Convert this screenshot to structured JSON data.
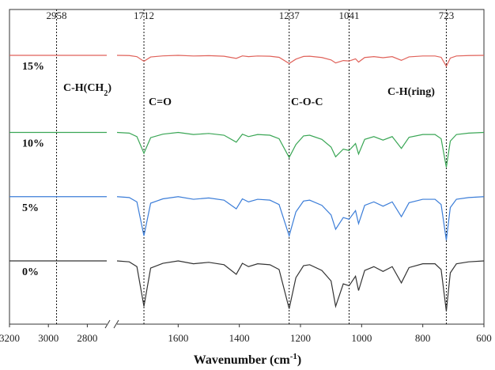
{
  "chart_data": {
    "type": "line",
    "title": "",
    "xlabel": "Wavenumber (cm",
    "xlabel_sup": "-1",
    "xlabel_end": ")",
    "ylabel": "",
    "x_reversed": true,
    "x_break": {
      "from": 2700,
      "to": 1800
    },
    "x_ticks": [
      {
        "value": 3200,
        "label": "3200"
      },
      {
        "value": 3000,
        "label": "3000"
      },
      {
        "value": 2800,
        "label": "2800"
      },
      {
        "value": 1600,
        "label": "1600"
      },
      {
        "value": 1400,
        "label": "1400"
      },
      {
        "value": 1200,
        "label": "1200"
      },
      {
        "value": 1000,
        "label": "1000"
      },
      {
        "value": 800,
        "label": "800"
      },
      {
        "value": 600,
        "label": "600"
      }
    ],
    "peaks": [
      {
        "value": 2958,
        "label": "2958"
      },
      {
        "value": 1712,
        "label": "1712"
      },
      {
        "value": 1237,
        "label": "1237"
      },
      {
        "value": 1041,
        "label": "1041"
      },
      {
        "value": 723,
        "label": "723"
      }
    ],
    "annotations": [
      {
        "label": "C-H(CH",
        "sub": "2",
        "end": ")",
        "x": 2958
      },
      {
        "label": "C=O",
        "x": 1712
      },
      {
        "label": "C-O-C",
        "x": 1237
      },
      {
        "label": "C-H(ring)",
        "x": 1041
      }
    ],
    "series": [
      {
        "name": "15%",
        "color": "#e0625a",
        "baseline": 1.0,
        "scale": 0.25,
        "high_region": [
          [
            3200,
            0.0
          ],
          [
            2700,
            0.0
          ]
        ],
        "points": [
          [
            1800,
            0.0
          ],
          [
            1760,
            0.02
          ],
          [
            1735,
            0.12
          ],
          [
            1712,
            0.55
          ],
          [
            1690,
            0.15
          ],
          [
            1650,
            0.05
          ],
          [
            1600,
            0.0
          ],
          [
            1550,
            0.06
          ],
          [
            1500,
            0.03
          ],
          [
            1450,
            0.08
          ],
          [
            1410,
            0.28
          ],
          [
            1390,
            0.05
          ],
          [
            1370,
            0.12
          ],
          [
            1340,
            0.06
          ],
          [
            1300,
            0.08
          ],
          [
            1270,
            0.18
          ],
          [
            1237,
            0.75
          ],
          [
            1215,
            0.35
          ],
          [
            1190,
            0.1
          ],
          [
            1170,
            0.08
          ],
          [
            1130,
            0.2
          ],
          [
            1100,
            0.42
          ],
          [
            1085,
            0.7
          ],
          [
            1060,
            0.48
          ],
          [
            1041,
            0.52
          ],
          [
            1020,
            0.32
          ],
          [
            1010,
            0.62
          ],
          [
            990,
            0.2
          ],
          [
            960,
            0.12
          ],
          [
            930,
            0.22
          ],
          [
            900,
            0.12
          ],
          [
            870,
            0.46
          ],
          [
            845,
            0.14
          ],
          [
            800,
            0.06
          ],
          [
            760,
            0.06
          ],
          [
            740,
            0.18
          ],
          [
            723,
            1.0
          ],
          [
            710,
            0.25
          ],
          [
            690,
            0.06
          ],
          [
            650,
            0.02
          ],
          [
            600,
            0.0
          ]
        ]
      },
      {
        "name": "10%",
        "color": "#3aa655",
        "baseline": 0.7,
        "scale": 0.8,
        "high_region": [
          [
            3200,
            0.0
          ],
          [
            2700,
            0.0
          ]
        ],
        "points": [
          [
            1800,
            0.0
          ],
          [
            1760,
            0.02
          ],
          [
            1735,
            0.12
          ],
          [
            1712,
            0.6
          ],
          [
            1690,
            0.15
          ],
          [
            1650,
            0.05
          ],
          [
            1600,
            0.0
          ],
          [
            1550,
            0.06
          ],
          [
            1500,
            0.03
          ],
          [
            1450,
            0.08
          ],
          [
            1410,
            0.28
          ],
          [
            1390,
            0.05
          ],
          [
            1370,
            0.12
          ],
          [
            1340,
            0.06
          ],
          [
            1300,
            0.08
          ],
          [
            1270,
            0.18
          ],
          [
            1237,
            0.72
          ],
          [
            1215,
            0.35
          ],
          [
            1190,
            0.1
          ],
          [
            1170,
            0.08
          ],
          [
            1130,
            0.2
          ],
          [
            1100,
            0.42
          ],
          [
            1085,
            0.7
          ],
          [
            1060,
            0.48
          ],
          [
            1041,
            0.52
          ],
          [
            1020,
            0.32
          ],
          [
            1010,
            0.62
          ],
          [
            990,
            0.2
          ],
          [
            960,
            0.12
          ],
          [
            930,
            0.22
          ],
          [
            900,
            0.12
          ],
          [
            870,
            0.46
          ],
          [
            845,
            0.14
          ],
          [
            800,
            0.06
          ],
          [
            760,
            0.06
          ],
          [
            740,
            0.18
          ],
          [
            723,
            1.0
          ],
          [
            710,
            0.25
          ],
          [
            690,
            0.06
          ],
          [
            650,
            0.02
          ],
          [
            600,
            0.0
          ]
        ]
      },
      {
        "name": "5%",
        "color": "#3b7dd8",
        "baseline": 0.45,
        "scale": 1.0,
        "high_region": [
          [
            3200,
            0.0
          ],
          [
            2700,
            0.0
          ]
        ],
        "points": [
          [
            1800,
            0.0
          ],
          [
            1760,
            0.02
          ],
          [
            1735,
            0.12
          ],
          [
            1712,
            0.9
          ],
          [
            1690,
            0.15
          ],
          [
            1650,
            0.05
          ],
          [
            1600,
            0.0
          ],
          [
            1550,
            0.06
          ],
          [
            1500,
            0.03
          ],
          [
            1450,
            0.08
          ],
          [
            1410,
            0.28
          ],
          [
            1390,
            0.05
          ],
          [
            1370,
            0.12
          ],
          [
            1340,
            0.06
          ],
          [
            1300,
            0.08
          ],
          [
            1270,
            0.18
          ],
          [
            1237,
            0.9
          ],
          [
            1215,
            0.35
          ],
          [
            1190,
            0.1
          ],
          [
            1170,
            0.08
          ],
          [
            1130,
            0.2
          ],
          [
            1100,
            0.42
          ],
          [
            1085,
            0.75
          ],
          [
            1060,
            0.48
          ],
          [
            1041,
            0.52
          ],
          [
            1020,
            0.32
          ],
          [
            1010,
            0.62
          ],
          [
            990,
            0.2
          ],
          [
            960,
            0.12
          ],
          [
            930,
            0.22
          ],
          [
            900,
            0.12
          ],
          [
            870,
            0.46
          ],
          [
            845,
            0.14
          ],
          [
            800,
            0.06
          ],
          [
            760,
            0.06
          ],
          [
            740,
            0.18
          ],
          [
            723,
            1.0
          ],
          [
            710,
            0.25
          ],
          [
            690,
            0.06
          ],
          [
            650,
            0.02
          ],
          [
            600,
            0.0
          ]
        ]
      },
      {
        "name": "0%",
        "color": "#333333",
        "baseline": 0.2,
        "scale": 1.1,
        "high_region": [
          [
            3200,
            0.0
          ],
          [
            2700,
            0.0
          ]
        ],
        "points": [
          [
            1800,
            0.0
          ],
          [
            1760,
            0.02
          ],
          [
            1735,
            0.12
          ],
          [
            1712,
            0.95
          ],
          [
            1690,
            0.15
          ],
          [
            1650,
            0.05
          ],
          [
            1600,
            0.0
          ],
          [
            1550,
            0.06
          ],
          [
            1500,
            0.03
          ],
          [
            1450,
            0.08
          ],
          [
            1410,
            0.28
          ],
          [
            1390,
            0.05
          ],
          [
            1370,
            0.12
          ],
          [
            1340,
            0.06
          ],
          [
            1300,
            0.08
          ],
          [
            1270,
            0.18
          ],
          [
            1237,
            1.0
          ],
          [
            1215,
            0.35
          ],
          [
            1190,
            0.1
          ],
          [
            1170,
            0.08
          ],
          [
            1130,
            0.2
          ],
          [
            1100,
            0.42
          ],
          [
            1085,
            0.95
          ],
          [
            1060,
            0.48
          ],
          [
            1041,
            0.52
          ],
          [
            1020,
            0.32
          ],
          [
            1010,
            0.62
          ],
          [
            990,
            0.2
          ],
          [
            960,
            0.12
          ],
          [
            930,
            0.22
          ],
          [
            900,
            0.12
          ],
          [
            870,
            0.46
          ],
          [
            845,
            0.14
          ],
          [
            800,
            0.06
          ],
          [
            760,
            0.06
          ],
          [
            740,
            0.18
          ],
          [
            723,
            1.05
          ],
          [
            710,
            0.25
          ],
          [
            690,
            0.06
          ],
          [
            650,
            0.02
          ],
          [
            600,
            0.0
          ]
        ]
      }
    ],
    "grid": false,
    "legend": "none"
  }
}
